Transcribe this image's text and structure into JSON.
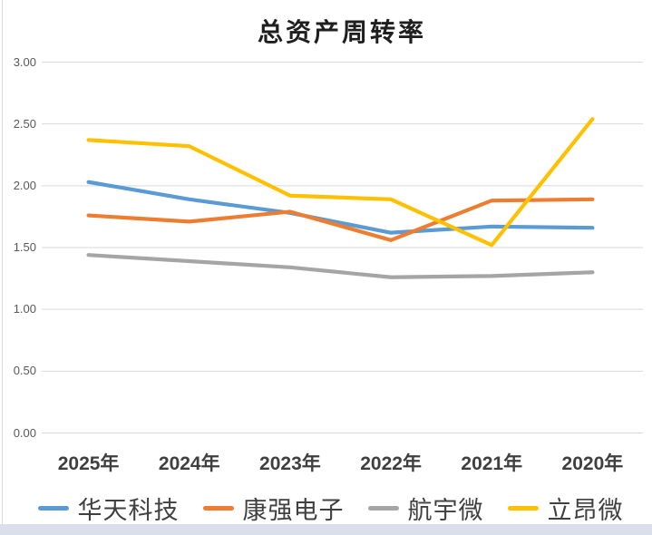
{
  "chart_data": {
    "type": "line",
    "title": "总资产周转率",
    "categories": [
      "2025年",
      "2024年",
      "2023年",
      "2022年",
      "2021年",
      "2020年"
    ],
    "series": [
      {
        "name": "华天科技",
        "color": "#5B9BD5",
        "values": [
          2.03,
          1.89,
          1.78,
          1.62,
          1.67,
          1.66
        ]
      },
      {
        "name": "康强电子",
        "color": "#ED7D31",
        "values": [
          1.76,
          1.71,
          1.79,
          1.56,
          1.88,
          1.89
        ]
      },
      {
        "name": "航宇微",
        "color": "#A5A5A5",
        "values": [
          1.44,
          1.39,
          1.34,
          1.26,
          1.27,
          1.3
        ]
      },
      {
        "name": "立昂微",
        "color": "#FFC000",
        "values": [
          2.37,
          2.32,
          1.92,
          1.89,
          1.52,
          2.54
        ]
      }
    ],
    "ylim": [
      0,
      3
    ],
    "ytick_step": 0.5,
    "ytick_labels": [
      "3.00",
      "2.50",
      "2.00",
      "1.50",
      "1.00",
      "0.50",
      "0.00"
    ],
    "grid": "horizontal-only",
    "legend_position": "bottom",
    "colors": {
      "gridline": "#D9D9D9",
      "ytick_label": "#595959",
      "xtick_label": "#3F3F3F",
      "title": "#1F1F1F",
      "legend_label": "#404040",
      "bottom_strip": "#D9E0EB",
      "left_edge": "#D9D9D9"
    }
  }
}
